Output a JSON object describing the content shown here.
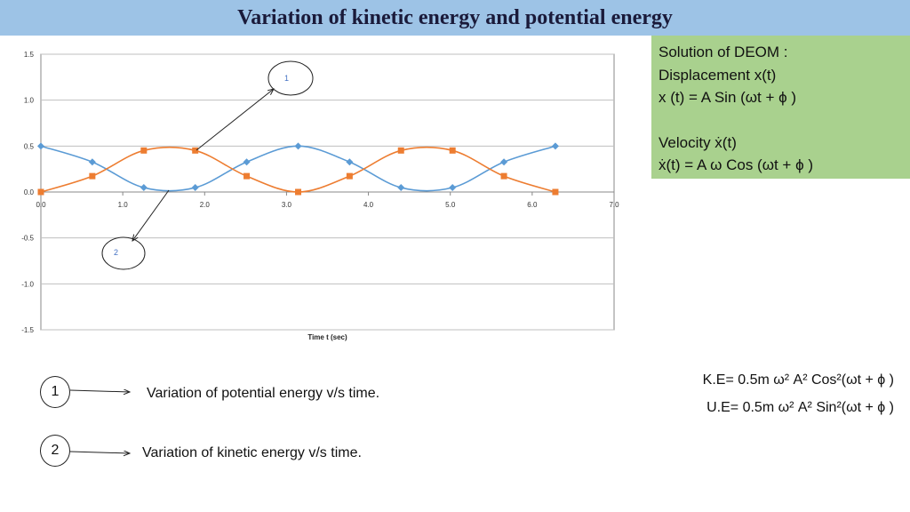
{
  "slide_title": "Variation of kinetic energy and potential energy",
  "info": {
    "line1": "Solution of DEOM :",
    "line2": "Displacement x(t)",
    "line3": "x (t) = A Sin (ωt + ϕ )",
    "line4": "Velocity ẋ(t)",
    "line5": "ẋ(t)  = A ω Cos (ωt + ϕ )"
  },
  "formulas": {
    "ke": "K.E= 0.5m ω² A² Cos²(ωt + ϕ )",
    "ue": "U.E= 0.5m ω² A² Sin²(ωt + ϕ )"
  },
  "legend": [
    {
      "num": "1",
      "text": "Variation of potential energy v/s time."
    },
    {
      "num": "2",
      "text": "Variation of kinetic energy v/s time."
    }
  ],
  "chart_data": {
    "type": "scatter",
    "xlabel": "Time t (sec)",
    "ylabel": "",
    "xlim": [
      0,
      7
    ],
    "ylim": [
      -1.5,
      1.5
    ],
    "x_ticks": [
      "0.0",
      "1.0",
      "2.0",
      "3.0",
      "4.0",
      "5.0",
      "6.0",
      "7.0"
    ],
    "y_ticks": [
      "1.5",
      "1.0",
      "0.5",
      "0.0",
      "-0.5",
      "-1.0",
      "-1.5"
    ],
    "grid": true,
    "series": [
      {
        "color": "#5b9bd5",
        "marker": "diamond",
        "x": [
          0,
          0.628,
          1.257,
          1.885,
          2.513,
          3.142,
          3.77,
          4.398,
          5.027,
          5.655,
          6.283
        ],
        "y": [
          0.5,
          0.327,
          0.048,
          0.048,
          0.327,
          0.5,
          0.327,
          0.048,
          0.048,
          0.327,
          0.5
        ]
      },
      {
        "color": "#ed7d31",
        "marker": "square",
        "x": [
          0,
          0.628,
          1.257,
          1.885,
          2.513,
          3.142,
          3.77,
          4.398,
          5.027,
          5.655,
          6.283
        ],
        "y": [
          0,
          0.173,
          0.452,
          0.452,
          0.173,
          0,
          0.173,
          0.452,
          0.452,
          0.173,
          0
        ]
      }
    ],
    "annotations": [
      {
        "label": "1",
        "points_to_series": 1
      },
      {
        "label": "2",
        "points_to_series": 0
      }
    ]
  }
}
